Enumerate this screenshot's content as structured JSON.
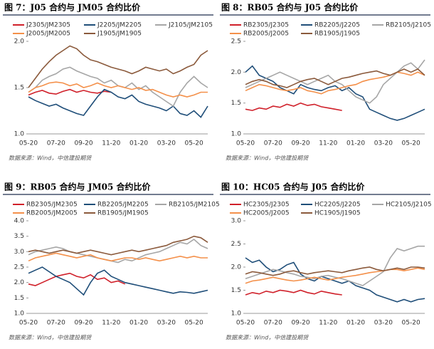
{
  "chart_data": [
    {
      "type": "line",
      "title": "图 7：J05 合约与 JM05 合约比价",
      "source": "数据来源：Wind，中信建投期货",
      "categories": [
        "05-20",
        null,
        null,
        null,
        "07-20",
        null,
        null,
        null,
        "09-20",
        null,
        null,
        null,
        "11-20",
        null,
        null,
        null,
        "01-20",
        null,
        null,
        null,
        "03-20",
        null,
        null,
        null,
        "05-20",
        null,
        null
      ],
      "ylim": [
        1.0,
        2.0
      ],
      "yticks": [
        {
          "value": 1.0,
          "label": "1.0"
        },
        1.5,
        {
          "value": 2.0,
          "label": "2.0"
        }
      ],
      "series": [
        {
          "name": "J2305/JM2305",
          "color": "#d0202a",
          "values": [
            1.42,
            1.45,
            1.47,
            1.44,
            1.43,
            1.46,
            1.48,
            1.45,
            1.47,
            1.45,
            1.44,
            1.46,
            1.45,
            null,
            null,
            null,
            null,
            null,
            null,
            null,
            null,
            null,
            null,
            null,
            null,
            null,
            null
          ]
        },
        {
          "name": "J2205/JM2205",
          "color": "#1f4e79",
          "values": [
            1.4,
            1.36,
            1.33,
            1.3,
            1.32,
            1.28,
            1.25,
            1.22,
            1.2,
            1.3,
            1.4,
            1.48,
            1.45,
            1.4,
            1.38,
            1.42,
            1.35,
            1.32,
            1.3,
            1.28,
            1.25,
            1.3,
            1.22,
            1.2,
            1.25,
            1.18,
            1.3
          ]
        },
        {
          "name": "J2105/JM2105",
          "color": "#a6a6a6",
          "values": [
            1.45,
            1.5,
            1.58,
            1.62,
            1.65,
            1.7,
            1.72,
            1.68,
            1.65,
            1.62,
            1.6,
            1.55,
            1.58,
            1.52,
            1.5,
            1.55,
            1.48,
            1.52,
            1.45,
            1.4,
            1.35,
            1.3,
            1.45,
            1.55,
            1.62,
            1.55,
            1.5
          ]
        },
        {
          "name": "J2005/JM2005",
          "color": "#f4904a",
          "values": [
            1.45,
            1.5,
            1.52,
            1.55,
            1.56,
            1.55,
            1.52,
            1.54,
            1.5,
            1.52,
            1.55,
            1.52,
            1.5,
            1.52,
            1.5,
            1.48,
            1.5,
            1.47,
            1.48,
            1.45,
            1.42,
            1.4,
            1.42,
            1.4,
            1.42,
            1.45,
            1.45
          ]
        },
        {
          "name": "J1905/JM1905",
          "color": "#8b5a3c",
          "values": [
            1.5,
            1.6,
            1.7,
            1.78,
            1.85,
            1.9,
            1.95,
            1.92,
            1.85,
            1.8,
            1.78,
            1.75,
            1.72,
            1.7,
            1.68,
            1.65,
            1.68,
            1.72,
            1.7,
            1.68,
            1.7,
            1.65,
            1.68,
            1.72,
            1.75,
            1.85,
            1.9
          ]
        }
      ]
    },
    {
      "type": "line",
      "title": "图 8：RB05 合约与 J05 合约比价",
      "source": "数据来源：Wind，中信建投期货",
      "categories": [
        "05-20",
        null,
        null,
        null,
        "07-20",
        null,
        null,
        null,
        "09-20",
        null,
        null,
        null,
        "11-20",
        null,
        null,
        null,
        "01-20",
        null,
        null,
        null,
        "03-20",
        null,
        null,
        null,
        "05-20",
        null,
        null
      ],
      "ylim": [
        1.0,
        2.5
      ],
      "yticks": [
        {
          "value": 1.0,
          "label": "1.0"
        },
        1.5,
        {
          "value": 2.0,
          "label": "2.0"
        },
        2.5
      ],
      "series": [
        {
          "name": "RB2305/J2305",
          "color": "#d0202a",
          "values": [
            1.4,
            1.38,
            1.42,
            1.4,
            1.45,
            1.43,
            1.48,
            1.45,
            1.5,
            1.46,
            1.48,
            1.44,
            1.42,
            1.4,
            1.38,
            null,
            null,
            null,
            null,
            null,
            null,
            null,
            null,
            null,
            null,
            null,
            null
          ]
        },
        {
          "name": "RB2205/J2205",
          "color": "#1f4e79",
          "values": [
            2.0,
            2.1,
            1.95,
            1.9,
            1.85,
            1.75,
            1.7,
            1.65,
            1.8,
            1.75,
            1.72,
            1.7,
            1.75,
            1.78,
            1.7,
            1.75,
            1.65,
            1.6,
            1.4,
            1.35,
            1.3,
            1.25,
            1.22,
            1.25,
            1.3,
            1.35,
            1.4
          ]
        },
        {
          "name": "RB2105/J2105",
          "color": "#a6a6a6",
          "values": [
            1.75,
            1.8,
            1.85,
            1.9,
            1.95,
            2.0,
            1.95,
            1.9,
            1.85,
            1.8,
            1.85,
            1.9,
            1.95,
            1.85,
            1.8,
            1.7,
            1.6,
            1.55,
            1.5,
            1.6,
            1.8,
            1.9,
            2.0,
            2.1,
            2.15,
            2.05,
            2.2
          ]
        },
        {
          "name": "RB2005/J2005",
          "color": "#f4904a",
          "values": [
            1.7,
            1.75,
            1.8,
            1.78,
            1.75,
            1.72,
            1.7,
            1.72,
            1.75,
            1.7,
            1.68,
            1.65,
            1.7,
            1.72,
            1.75,
            1.78,
            1.8,
            1.85,
            1.88,
            1.9,
            1.92,
            1.95,
            2.0,
            1.98,
            1.95,
            2.0,
            1.95
          ]
        },
        {
          "name": "RB1905/J1905",
          "color": "#8b5a3c",
          "values": [
            1.8,
            1.85,
            1.88,
            1.85,
            1.8,
            1.78,
            1.75,
            1.8,
            1.85,
            1.88,
            1.9,
            1.85,
            1.8,
            1.85,
            1.9,
            1.92,
            1.95,
            1.98,
            2.0,
            2.02,
            1.98,
            1.95,
            2.0,
            2.05,
            2.0,
            2.05,
            1.95
          ]
        }
      ]
    },
    {
      "type": "line",
      "title": "图 9：RB05 合约与 JM05 合约比价",
      "source": "数据来源：Wind，中信建投期货",
      "categories": [
        "05-20",
        null,
        null,
        null,
        "07-20",
        null,
        null,
        null,
        "09-20",
        null,
        null,
        null,
        "11-20",
        null,
        null,
        null,
        "01-20",
        null,
        null,
        null,
        "03-20",
        null,
        null,
        null,
        "05-20",
        null,
        null
      ],
      "ylim": [
        1.0,
        4.0
      ],
      "yticks": [
        {
          "value": 1.0,
          "label": "1.0"
        },
        1.5,
        {
          "value": 2.0,
          "label": "2.0"
        },
        2.5,
        {
          "value": 3.0,
          "label": "3.0"
        },
        3.5,
        {
          "value": 4.0,
          "label": "4.0"
        }
      ],
      "series": [
        {
          "name": "RB2305/JM2305",
          "color": "#d0202a",
          "values": [
            1.95,
            1.9,
            2.0,
            2.1,
            2.2,
            2.25,
            2.3,
            2.2,
            2.15,
            2.25,
            2.1,
            2.15,
            2.0,
            2.05,
            1.95,
            null,
            null,
            null,
            null,
            null,
            null,
            null,
            null,
            null,
            null,
            null,
            null
          ]
        },
        {
          "name": "RB2205/JM2205",
          "color": "#1f4e79",
          "values": [
            2.3,
            2.4,
            2.5,
            2.35,
            2.2,
            2.1,
            2.0,
            1.8,
            1.6,
            2.0,
            2.3,
            2.4,
            2.2,
            2.1,
            2.0,
            1.95,
            1.9,
            1.85,
            1.8,
            1.75,
            1.7,
            1.65,
            1.7,
            1.68,
            1.65,
            1.7,
            1.75
          ]
        },
        {
          "name": "RB2105/JM2105",
          "color": "#a6a6a6",
          "values": [
            2.9,
            3.0,
            3.05,
            3.1,
            3.15,
            3.1,
            3.0,
            2.95,
            2.9,
            2.85,
            2.8,
            2.75,
            2.7,
            2.65,
            2.75,
            2.7,
            2.8,
            2.9,
            2.95,
            3.0,
            3.1,
            3.2,
            3.3,
            3.25,
            3.4,
            3.2,
            3.1
          ]
        },
        {
          "name": "RB2005/JM2005",
          "color": "#f4904a",
          "values": [
            2.7,
            2.8,
            2.85,
            2.9,
            2.95,
            2.9,
            2.85,
            2.8,
            2.85,
            2.9,
            2.8,
            2.75,
            2.7,
            2.75,
            2.8,
            2.8,
            2.75,
            2.8,
            2.75,
            2.7,
            2.75,
            2.8,
            2.85,
            2.8,
            2.85,
            2.8,
            2.8
          ]
        },
        {
          "name": "RB1905/JM1905",
          "color": "#8b5a3c",
          "values": [
            3.0,
            3.05,
            3.0,
            2.95,
            3.0,
            3.05,
            3.0,
            2.95,
            3.0,
            3.05,
            3.0,
            2.95,
            2.9,
            2.95,
            3.0,
            3.05,
            3.0,
            3.05,
            3.1,
            3.15,
            3.2,
            3.3,
            3.35,
            3.4,
            3.5,
            3.45,
            3.3
          ]
        }
      ]
    },
    {
      "type": "line",
      "title": "图 10：HC05 合约与 J05 合约比价",
      "source": "数据来源：Wind，中信建投期货",
      "categories": [
        "05-20",
        null,
        null,
        null,
        "07-20",
        null,
        null,
        null,
        "09-20",
        null,
        null,
        null,
        "11-20",
        null,
        null,
        null,
        "01-20",
        null,
        null,
        null,
        "03-20",
        null,
        null,
        null,
        "05-20",
        null,
        null
      ],
      "ylim": [
        1.0,
        3.0
      ],
      "yticks": [
        {
          "value": 1.0,
          "label": "1.0"
        },
        1.5,
        {
          "value": 2.0,
          "label": "2.0"
        },
        2.5,
        {
          "value": 3.0,
          "label": "3.0"
        }
      ],
      "series": [
        {
          "name": "HC2305/J2305",
          "color": "#d0202a",
          "values": [
            1.4,
            1.45,
            1.42,
            1.48,
            1.45,
            1.5,
            1.48,
            1.45,
            1.5,
            1.45,
            1.42,
            1.48,
            1.45,
            1.42,
            1.4,
            null,
            null,
            null,
            null,
            null,
            null,
            null,
            null,
            null,
            null,
            null,
            null
          ]
        },
        {
          "name": "HC2205/J2205",
          "color": "#1f4e79",
          "values": [
            2.2,
            2.1,
            2.15,
            2.0,
            1.9,
            1.95,
            2.05,
            2.1,
            1.85,
            1.75,
            1.7,
            1.8,
            1.75,
            1.7,
            1.65,
            1.7,
            1.6,
            1.55,
            1.5,
            1.4,
            1.35,
            1.3,
            1.25,
            1.3,
            1.25,
            1.3,
            1.32
          ]
        },
        {
          "name": "HC2105/J2105",
          "color": "#a6a6a6",
          "values": [
            1.75,
            1.8,
            1.85,
            1.9,
            1.95,
            1.92,
            1.88,
            1.85,
            1.8,
            1.78,
            1.75,
            1.8,
            1.82,
            1.78,
            1.75,
            1.7,
            1.65,
            1.6,
            1.7,
            1.8,
            1.9,
            2.2,
            2.4,
            2.35,
            2.4,
            2.45,
            2.45
          ]
        },
        {
          "name": "HC2005/J2005",
          "color": "#f4904a",
          "values": [
            1.65,
            1.7,
            1.72,
            1.75,
            1.78,
            1.75,
            1.72,
            1.7,
            1.72,
            1.75,
            1.78,
            1.75,
            1.72,
            1.75,
            1.78,
            1.8,
            1.82,
            1.85,
            1.88,
            1.9,
            1.92,
            1.95,
            1.95,
            1.92,
            1.95,
            1.98,
            1.95
          ]
        },
        {
          "name": "HC1905/J1905",
          "color": "#8b5a3c",
          "values": [
            1.85,
            1.9,
            1.88,
            1.85,
            1.82,
            1.85,
            1.9,
            1.92,
            1.88,
            1.85,
            1.88,
            1.9,
            1.92,
            1.9,
            1.88,
            1.92,
            1.95,
            1.98,
            2.0,
            1.95,
            1.92,
            1.95,
            1.98,
            1.95,
            2.0,
            2.0,
            1.98
          ]
        }
      ]
    }
  ]
}
